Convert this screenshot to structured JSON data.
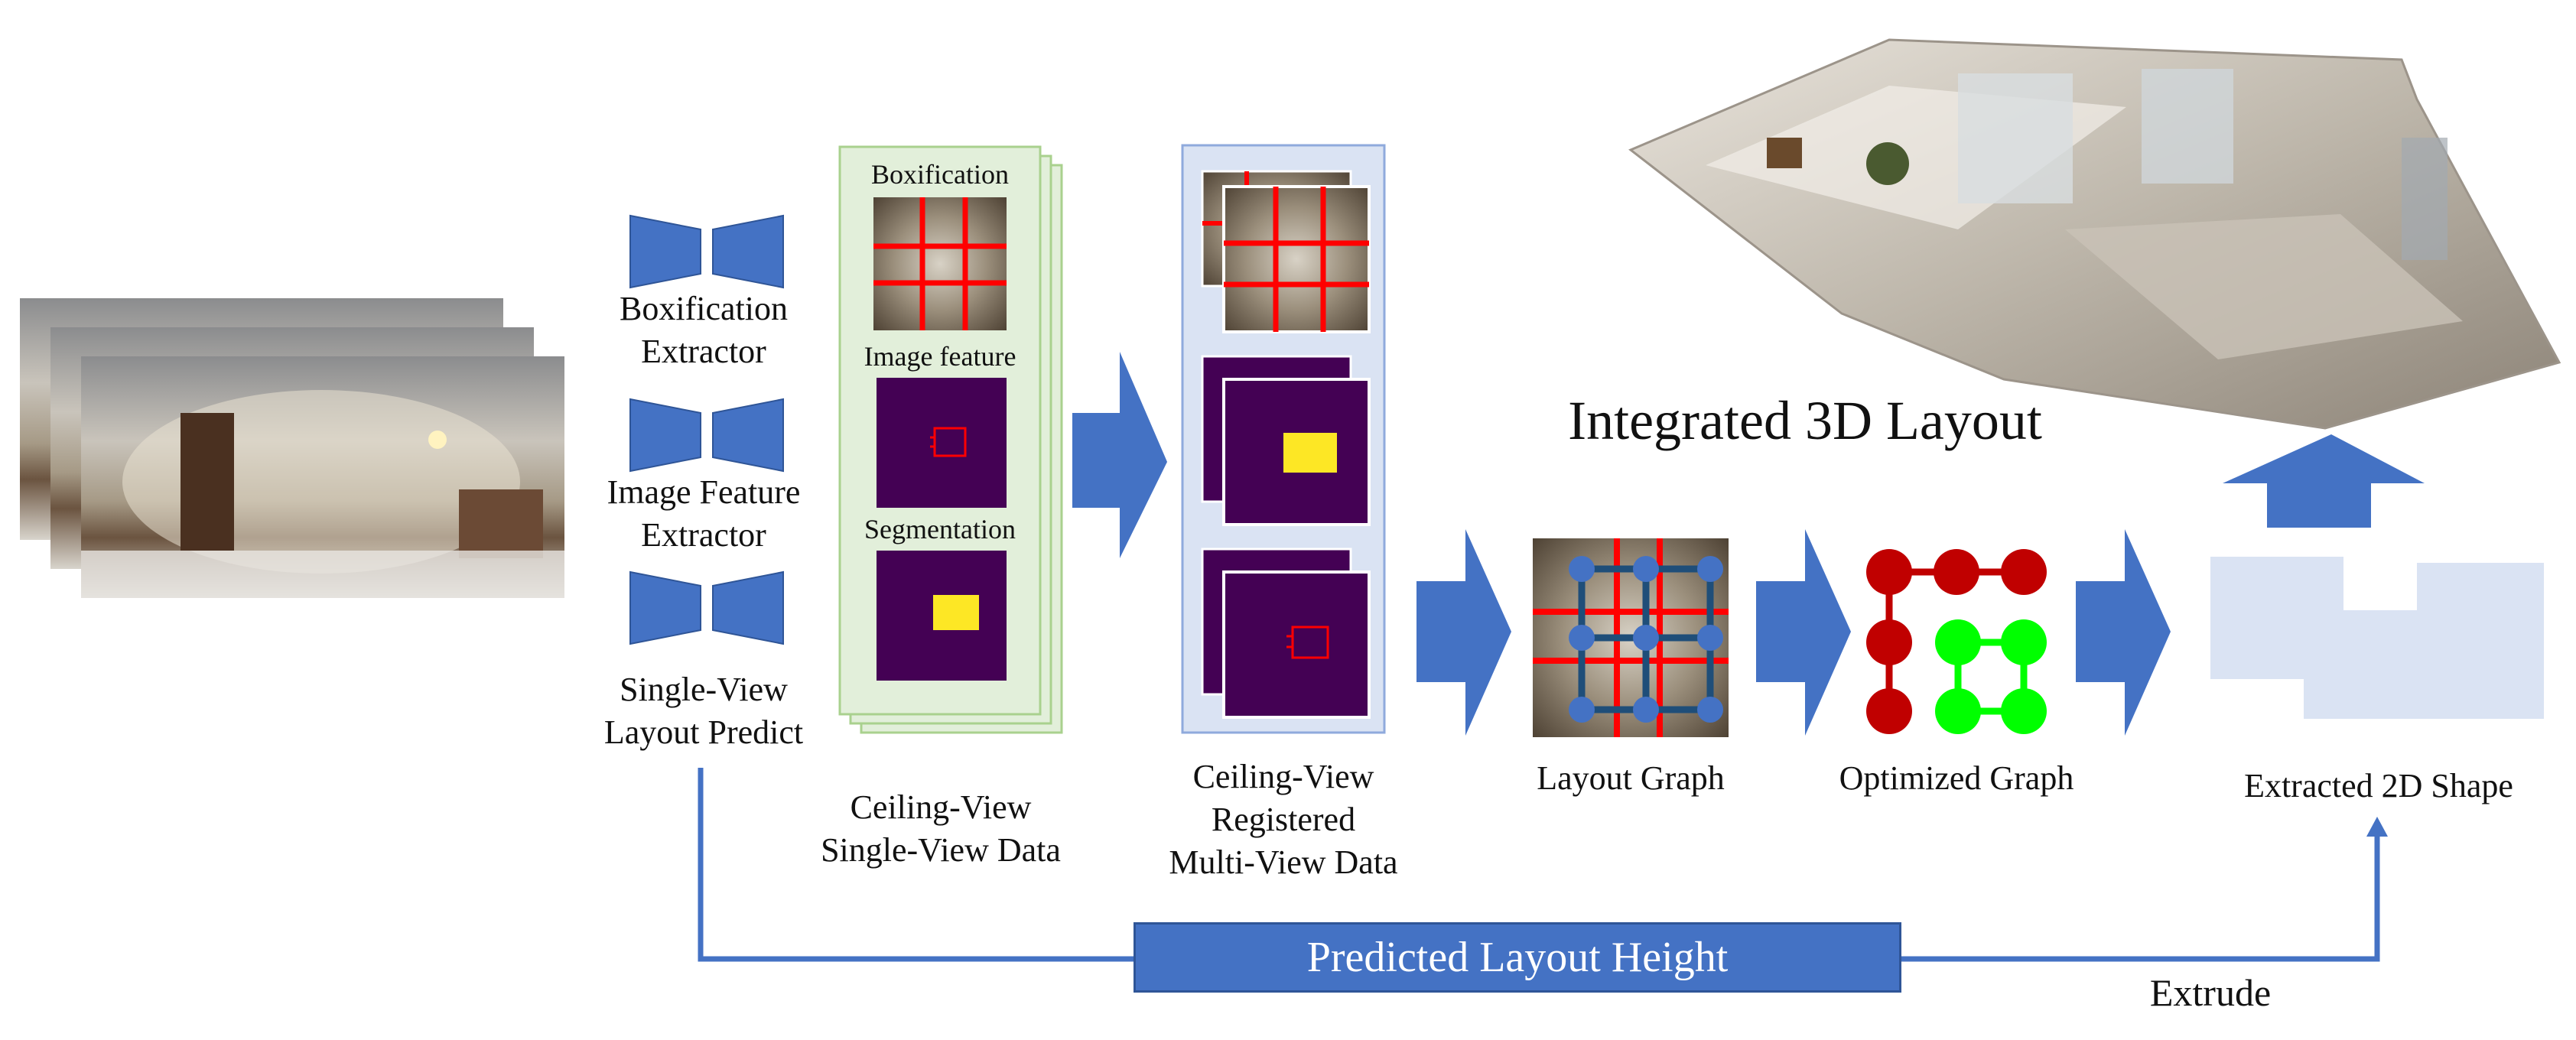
{
  "extractors": [
    {
      "line1": "Boxification",
      "line2": "Extractor"
    },
    {
      "line1": "Image Feature",
      "line2": "Extractor"
    },
    {
      "line1": "Single-View",
      "line2": "Layout Predict"
    }
  ],
  "single_view": {
    "boxification": "Boxification",
    "image_feature": "Image feature",
    "segmentation": "Segmentation",
    "caption_line1": "Ceiling-View",
    "caption_line2": "Single-View Data"
  },
  "multi_view": {
    "caption_line1": "Ceiling-View",
    "caption_line2": "Registered",
    "caption_line3": "Multi-View Data"
  },
  "layout_graph": "Layout Graph",
  "optimized_graph": "Optimized Graph",
  "extracted_shape": "Extracted 2D Shape",
  "integrated_title": "Integrated 3D Layout",
  "predicted_height": "Predicted Layout Height",
  "extrude": "Extrude",
  "colors": {
    "arrow_blue": "#4472c4",
    "single_panel_fill": "#e2efda",
    "single_panel_border": "#a9d18e",
    "multi_panel_fill": "#dae3f3",
    "multi_panel_border": "#8faadc",
    "feature_purple": "#440154",
    "segment_yellow": "#fde725",
    "red_line": "#ff0000",
    "graph_red": "#c00000",
    "graph_green": "#00ff00",
    "shape_fill": "#dae3f3"
  }
}
